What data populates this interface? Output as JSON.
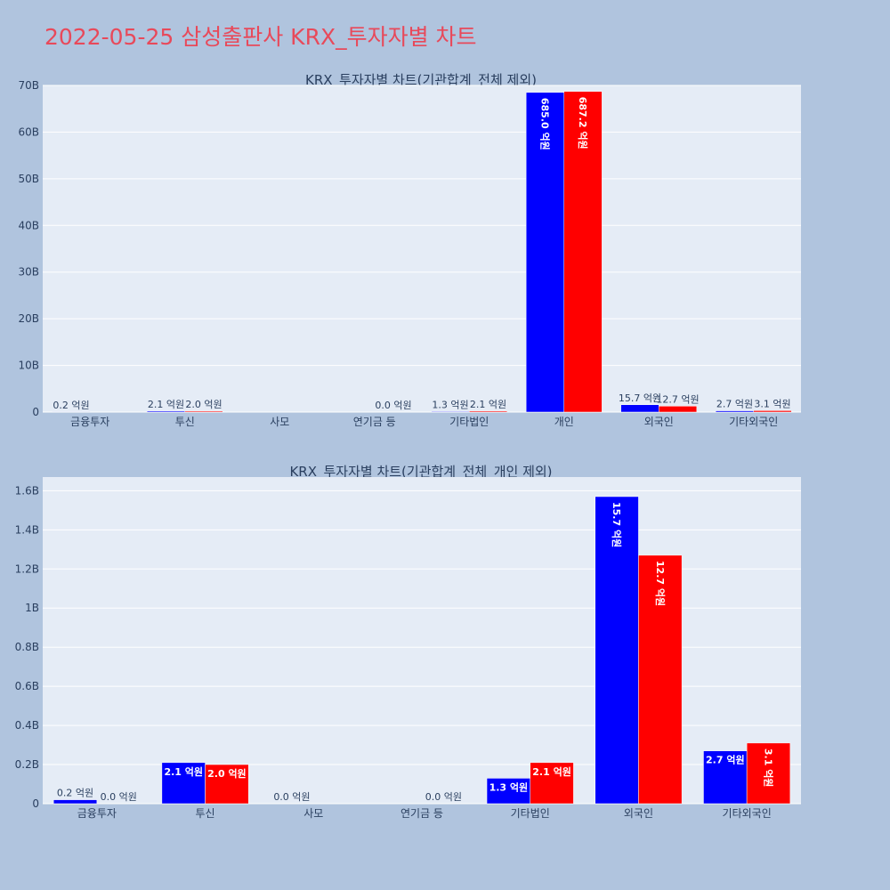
{
  "title": "2022-05-25 삼성출판사 KRX_투자자별 차트",
  "colors": {
    "page_bg": "#b0c4de",
    "plot_bg": "#e5ecf6",
    "title": "#e8495a",
    "series_a": "#0000ff",
    "series_b": "#ff0000",
    "text": "#2a3f5f"
  },
  "chart_data": [
    {
      "type": "bar",
      "title": "KRX_투자자별 차트(기관합계_전체 제외)",
      "categories": [
        "금융투자",
        "투신",
        "사모",
        "연기금 등",
        "기타법인",
        "개인",
        "외국인",
        "기타외국인"
      ],
      "ylim": [
        0,
        70000000000
      ],
      "yticks": [
        0,
        10000000000,
        20000000000,
        30000000000,
        40000000000,
        50000000000,
        60000000000,
        70000000000
      ],
      "ytick_labels": [
        "0",
        "10B",
        "20B",
        "30B",
        "40B",
        "50B",
        "60B",
        "70B"
      ],
      "grid": true,
      "series": [
        {
          "values": [
            20000000,
            210000000,
            0,
            0,
            130000000,
            68500000000,
            1570000000,
            270000000
          ],
          "labels": [
            "0.2 억원",
            "2.1 억원",
            "",
            "",
            "1.3 억원",
            "685.0 억원",
            "15.7 억원",
            "2.7 억원"
          ]
        },
        {
          "values": [
            0,
            200000000,
            0,
            0,
            210000000,
            68720000000,
            1270000000,
            310000000
          ],
          "labels": [
            "",
            "2.0 억원",
            "",
            "0.0 억원",
            "2.1 억원",
            "687.2 억원",
            "12.7 억원",
            "3.1 억원"
          ]
        }
      ]
    },
    {
      "type": "bar",
      "title": "KRX_투자자별 차트(기관합계_전체_개인 제외)",
      "categories": [
        "금융투자",
        "투신",
        "사모",
        "연기금 등",
        "기타법인",
        "외국인",
        "기타외국인"
      ],
      "ylim": [
        0,
        1670000000
      ],
      "yticks": [
        0,
        200000000,
        400000000,
        600000000,
        800000000,
        1000000000,
        1200000000,
        1400000000,
        1600000000
      ],
      "ytick_labels": [
        "0",
        "0.2B",
        "0.4B",
        "0.6B",
        "0.8B",
        "1B",
        "1.2B",
        "1.4B",
        "1.6B"
      ],
      "grid": true,
      "series": [
        {
          "values": [
            20000000,
            210000000,
            0,
            0,
            130000000,
            1570000000,
            270000000
          ],
          "labels": [
            "0.2 억원",
            "2.1 억원",
            "0.0 억원",
            "",
            "1.3 억원",
            "15.7 억원",
            "2.7 억원"
          ]
        },
        {
          "values": [
            0,
            200000000,
            0,
            0,
            210000000,
            1270000000,
            310000000
          ],
          "labels": [
            "0.0 억원",
            "2.0 억원",
            "",
            "0.0 억원",
            "2.1 억원",
            "12.7 억원",
            "3.1 억원"
          ]
        }
      ]
    }
  ]
}
